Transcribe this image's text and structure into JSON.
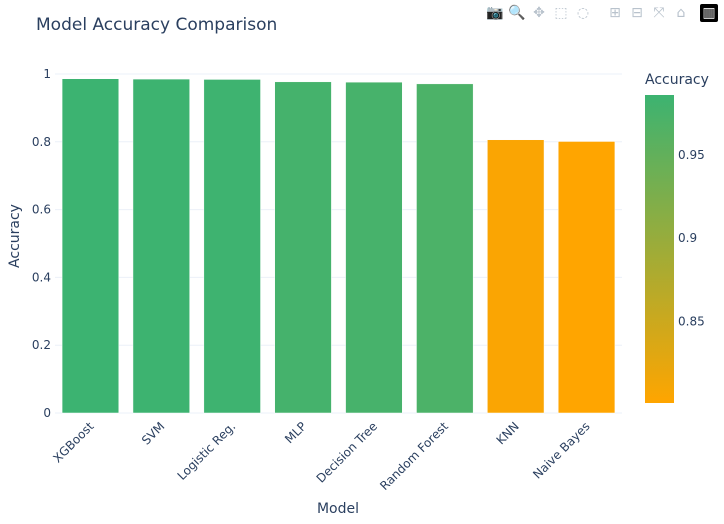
{
  "chart_data": {
    "type": "bar",
    "title": "Model Accuracy Comparison",
    "xlabel": "Model",
    "ylabel": "Accuracy",
    "categories": [
      "XGBoost",
      "SVM",
      "Logistic Reg.",
      "MLP",
      "Decision Tree",
      "Random Forest",
      "KNN",
      "Naive Bayes"
    ],
    "values": [
      0.986,
      0.985,
      0.984,
      0.977,
      0.976,
      0.971,
      0.806,
      0.801
    ],
    "ylim": [
      0,
      1
    ],
    "yticks": [
      0,
      0.2,
      0.4,
      0.6,
      0.8,
      1
    ],
    "ytick_labels": [
      "0",
      "0.2",
      "0.4",
      "0.6",
      "0.8",
      "1"
    ],
    "grid": true,
    "colorbar": {
      "title": "Accuracy",
      "range": [
        0.801,
        0.986
      ],
      "ticks": [
        0.85,
        0.9,
        0.95
      ],
      "tick_labels": [
        "0.85",
        "0.9",
        "0.95"
      ],
      "colors": [
        "#ffa500",
        "#3cb371"
      ]
    }
  },
  "modebar": {
    "icons": [
      "camera-icon",
      "zoom-icon",
      "pan-icon",
      "box-select-icon",
      "lasso-icon",
      "zoom-in-icon",
      "zoom-out-icon",
      "autoscale-icon",
      "home-icon",
      "plotly-logo-icon"
    ],
    "active": "zoom-icon"
  }
}
